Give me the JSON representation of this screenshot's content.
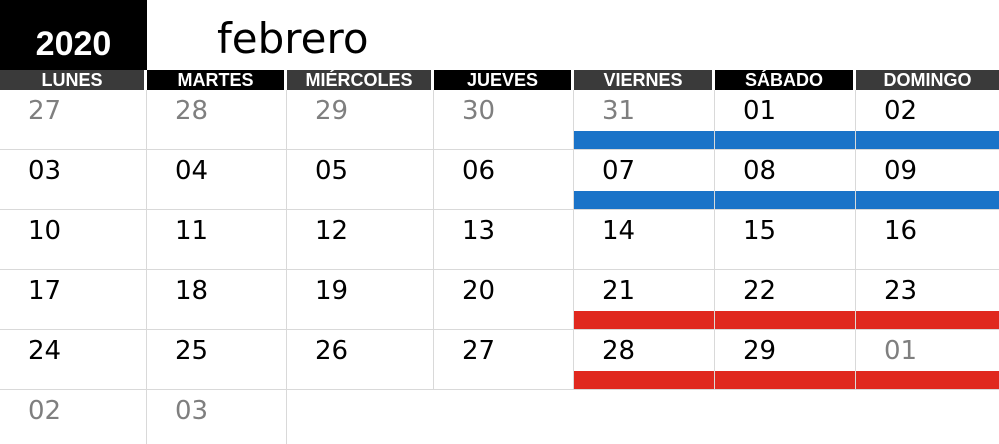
{
  "year": "2020",
  "month": "febrero",
  "colors": {
    "header_black": "#000000",
    "header_gray": "#3a3a3a",
    "text_current": "#000000",
    "text_other": "#7f7f7f",
    "bar_blue": "#1a73c8",
    "bar_red": "#e0281e"
  },
  "weekdays": [
    {
      "label": "LUNES",
      "style": "gray"
    },
    {
      "label": "MARTES",
      "style": "black"
    },
    {
      "label": "MIÉRCOLES",
      "style": "gray"
    },
    {
      "label": "JUEVES",
      "style": "black"
    },
    {
      "label": "VIERNES",
      "style": "gray"
    },
    {
      "label": "SÁBADO",
      "style": "black"
    },
    {
      "label": "DOMINGO",
      "style": "gray"
    }
  ],
  "weeks": [
    [
      {
        "day": "27",
        "other": true
      },
      {
        "day": "28",
        "other": true
      },
      {
        "day": "29",
        "other": true
      },
      {
        "day": "30",
        "other": true
      },
      {
        "day": "31",
        "other": true,
        "bar": "blue"
      },
      {
        "day": "01",
        "other": false,
        "bar": "blue"
      },
      {
        "day": "02",
        "other": false,
        "bar": "blue"
      }
    ],
    [
      {
        "day": "03",
        "other": false
      },
      {
        "day": "04",
        "other": false
      },
      {
        "day": "05",
        "other": false
      },
      {
        "day": "06",
        "other": false
      },
      {
        "day": "07",
        "other": false,
        "bar": "blue"
      },
      {
        "day": "08",
        "other": false,
        "bar": "blue"
      },
      {
        "day": "09",
        "other": false,
        "bar": "blue"
      }
    ],
    [
      {
        "day": "10",
        "other": false
      },
      {
        "day": "11",
        "other": false
      },
      {
        "day": "12",
        "other": false
      },
      {
        "day": "13",
        "other": false
      },
      {
        "day": "14",
        "other": false
      },
      {
        "day": "15",
        "other": false
      },
      {
        "day": "16",
        "other": false
      }
    ],
    [
      {
        "day": "17",
        "other": false
      },
      {
        "day": "18",
        "other": false
      },
      {
        "day": "19",
        "other": false
      },
      {
        "day": "20",
        "other": false
      },
      {
        "day": "21",
        "other": false,
        "bar": "red"
      },
      {
        "day": "22",
        "other": false,
        "bar": "red"
      },
      {
        "day": "23",
        "other": false,
        "bar": "red"
      }
    ],
    [
      {
        "day": "24",
        "other": false
      },
      {
        "day": "25",
        "other": false
      },
      {
        "day": "26",
        "other": false
      },
      {
        "day": "27",
        "other": false
      },
      {
        "day": "28",
        "other": false,
        "bar": "red"
      },
      {
        "day": "29",
        "other": false,
        "bar": "red"
      },
      {
        "day": "01",
        "other": true,
        "bar": "red"
      }
    ],
    [
      {
        "day": "02",
        "other": true
      },
      {
        "day": "03",
        "other": true
      }
    ]
  ]
}
